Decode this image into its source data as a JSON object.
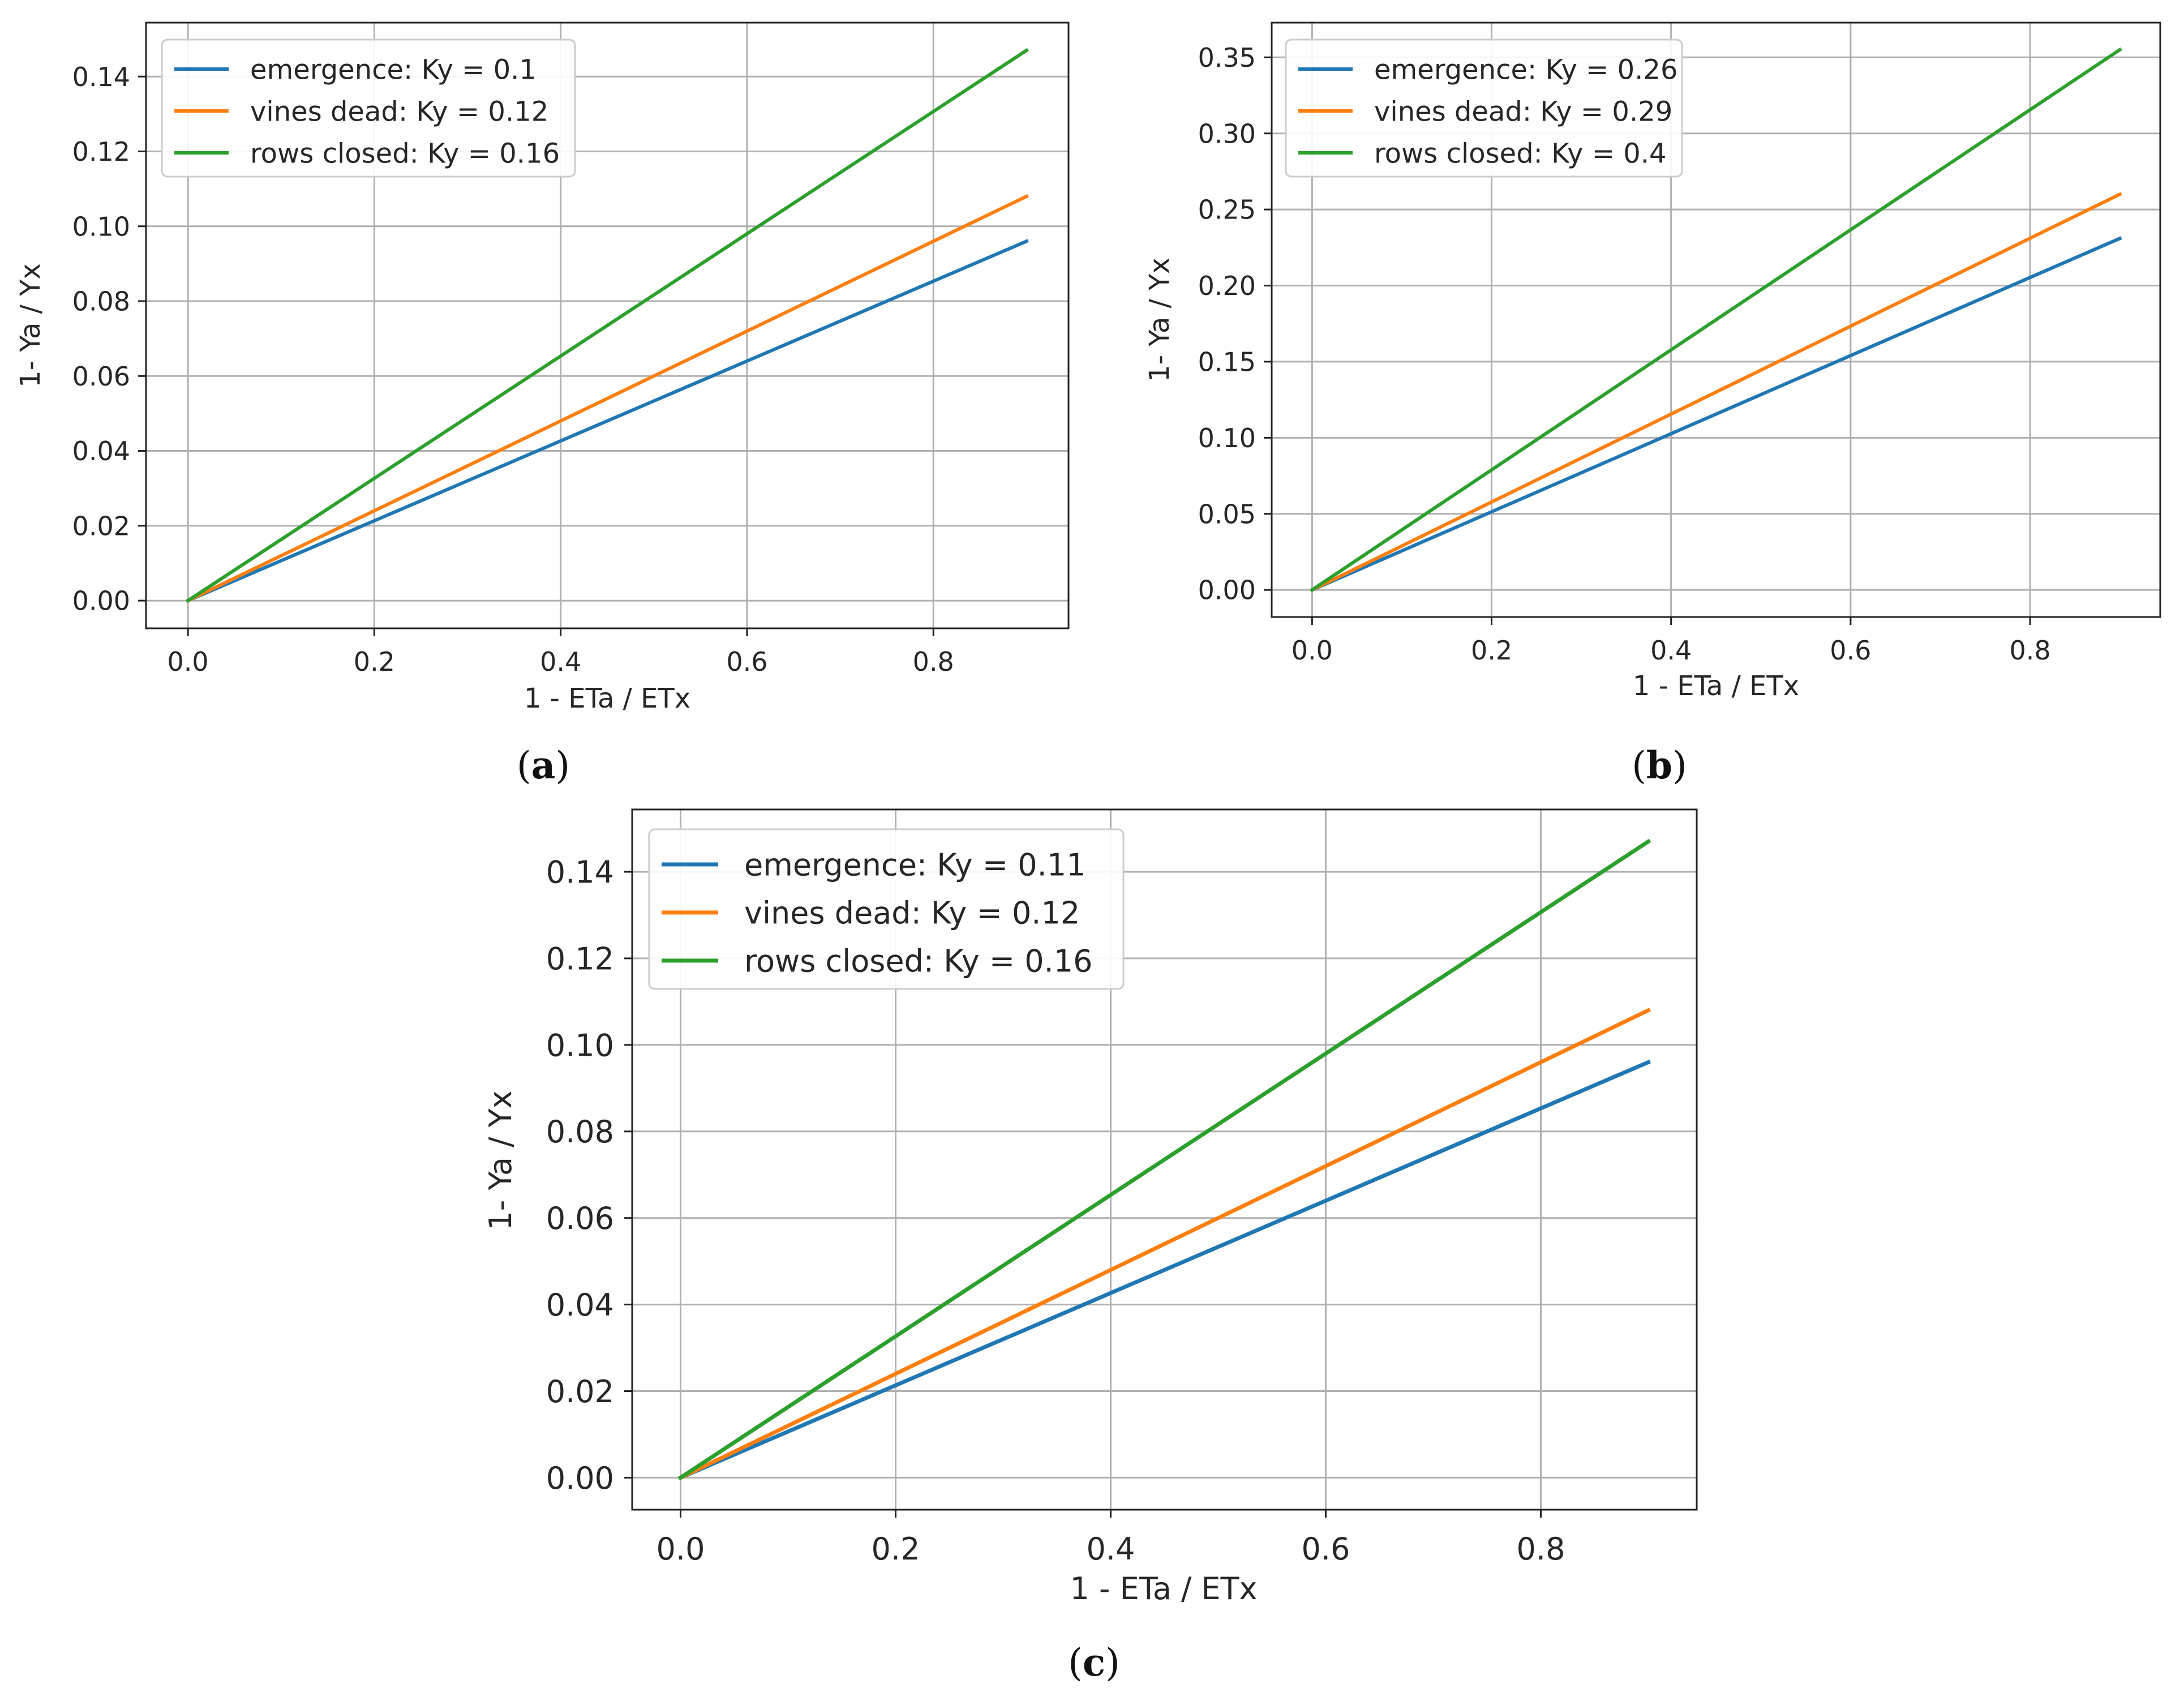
{
  "chart_data": [
    {
      "type": "line",
      "panel": "a",
      "caption_open": "(",
      "caption_letter": "a",
      "caption_close": ")",
      "title": "",
      "xlabel": "1 - ETa / ETx",
      "ylabel": "1- Ya / Yx",
      "xlim": [
        -0.045,
        0.945
      ],
      "ylim": [
        -0.0074,
        0.1544
      ],
      "xticks": [
        0.0,
        0.2,
        0.4,
        0.6,
        0.8
      ],
      "xtick_labels": [
        "0.0",
        "0.2",
        "0.4",
        "0.6",
        "0.8"
      ],
      "yticks": [
        0.0,
        0.02,
        0.04,
        0.06,
        0.08,
        0.1,
        0.12,
        0.14
      ],
      "ytick_labels": [
        "0.00",
        "0.02",
        "0.04",
        "0.06",
        "0.08",
        "0.10",
        "0.12",
        "0.14"
      ],
      "grid": true,
      "legend_position": "upper-left",
      "x": [
        0.0,
        0.9
      ],
      "series": [
        {
          "name": "emergence: Ky = 0.1",
          "color": "#1f77b4",
          "values": [
            0.0,
            0.096
          ]
        },
        {
          "name": "vines dead: Ky = 0.12",
          "color": "#ff7f0e",
          "values": [
            0.0,
            0.108
          ]
        },
        {
          "name": "rows closed: Ky = 0.16",
          "color": "#2ca02c",
          "values": [
            0.0,
            0.147
          ]
        }
      ]
    },
    {
      "type": "line",
      "panel": "b",
      "caption_open": "(",
      "caption_letter": "b",
      "caption_close": ")",
      "title": "",
      "xlabel": "1 - ETa / ETx",
      "ylabel": "1- Ya / Yx",
      "xlim": [
        -0.045,
        0.945
      ],
      "ylim": [
        -0.0178,
        0.3728
      ],
      "xticks": [
        0.0,
        0.2,
        0.4,
        0.6,
        0.8
      ],
      "xtick_labels": [
        "0.0",
        "0.2",
        "0.4",
        "0.6",
        "0.8"
      ],
      "yticks": [
        0.0,
        0.05,
        0.1,
        0.15,
        0.2,
        0.25,
        0.3,
        0.35
      ],
      "ytick_labels": [
        "0.00",
        "0.05",
        "0.10",
        "0.15",
        "0.20",
        "0.25",
        "0.30",
        "0.35"
      ],
      "grid": true,
      "legend_position": "upper-left",
      "x": [
        0.0,
        0.9
      ],
      "series": [
        {
          "name": "emergence: Ky = 0.26",
          "color": "#1f77b4",
          "values": [
            0.0,
            0.231
          ]
        },
        {
          "name": "vines dead: Ky = 0.29",
          "color": "#ff7f0e",
          "values": [
            0.0,
            0.26
          ]
        },
        {
          "name": "rows closed: Ky = 0.4",
          "color": "#2ca02c",
          "values": [
            0.0,
            0.355
          ]
        }
      ]
    },
    {
      "type": "line",
      "panel": "c",
      "caption_open": "(",
      "caption_letter": "c",
      "caption_close": ")",
      "title": "",
      "xlabel": "1 - ETa / ETx",
      "ylabel": "1- Ya / Yx",
      "xlim": [
        -0.045,
        0.945
      ],
      "ylim": [
        -0.0074,
        0.1544
      ],
      "xticks": [
        0.0,
        0.2,
        0.4,
        0.6,
        0.8
      ],
      "xtick_labels": [
        "0.0",
        "0.2",
        "0.4",
        "0.6",
        "0.8"
      ],
      "yticks": [
        0.0,
        0.02,
        0.04,
        0.06,
        0.08,
        0.1,
        0.12,
        0.14
      ],
      "ytick_labels": [
        "0.00",
        "0.02",
        "0.04",
        "0.06",
        "0.08",
        "0.10",
        "0.12",
        "0.14"
      ],
      "grid": true,
      "legend_position": "upper-left",
      "x": [
        0.0,
        0.9
      ],
      "series": [
        {
          "name": "emergence: Ky = 0.11",
          "color": "#1f77b4",
          "values": [
            0.0,
            0.096
          ]
        },
        {
          "name": "vines dead: Ky = 0.12",
          "color": "#ff7f0e",
          "values": [
            0.0,
            0.108
          ]
        },
        {
          "name": "rows closed: Ky = 0.16",
          "color": "#2ca02c",
          "values": [
            0.0,
            0.147
          ]
        }
      ]
    }
  ]
}
